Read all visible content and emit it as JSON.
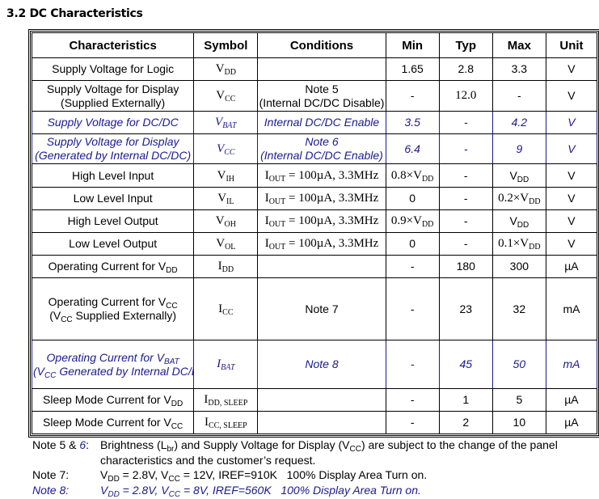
{
  "section_title": "3.2 DC Characteristics",
  "headers": [
    "Characteristics",
    "Symbol",
    "Conditions",
    "Min",
    "Typ",
    "Max",
    "Unit"
  ],
  "text_color_blue": "#1a1a90",
  "rows": [
    {
      "style": "normal",
      "cells": [
        [
          [
            "Supply Voltage for Logic"
          ]
        ],
        [
          [
            "V",
            {
              "sub": "DD"
            }
          ]
        ],
        [],
        [
          [
            "1.65"
          ]
        ],
        [
          [
            "2.8"
          ]
        ],
        [
          [
            "3.3"
          ]
        ],
        [
          [
            "V"
          ]
        ]
      ]
    },
    {
      "style": "normal",
      "cells": [
        [
          [
            "Supply Voltage for Display"
          ],
          [
            "(Supplied Externally)"
          ]
        ],
        [
          [
            "V",
            {
              "sub": "CC"
            }
          ]
        ],
        [
          [
            "Note 5"
          ],
          [
            "(Internal DC/DC Disable)"
          ]
        ],
        [
          [
            "-"
          ]
        ],
        [
          [
            "12.0"
          ]
        ],
        [
          [
            "-"
          ]
        ],
        [
          [
            "V"
          ]
        ]
      ]
    },
    {
      "style": "blue",
      "cells": [
        [
          [
            "Supply Voltage for DC/DC"
          ]
        ],
        [
          [
            "V",
            {
              "sub": "BAT"
            }
          ]
        ],
        [
          [
            "Internal DC/DC Enable"
          ]
        ],
        [
          [
            "3.5"
          ]
        ],
        [
          [
            "-"
          ]
        ],
        [
          [
            "4.2"
          ]
        ],
        [
          [
            "V"
          ]
        ]
      ]
    },
    {
      "style": "blue",
      "cells": [
        [
          [
            "Supply Voltage for Display"
          ],
          [
            "(Generated by Internal DC/DC)"
          ]
        ],
        [
          [
            "V",
            {
              "sub": "CC"
            }
          ]
        ],
        [
          [
            "Note 6"
          ],
          [
            "(Internal DC/DC Enable)"
          ]
        ],
        [
          [
            "6.4"
          ]
        ],
        [
          [
            "-"
          ]
        ],
        [
          [
            "9"
          ]
        ],
        [
          [
            "V"
          ]
        ]
      ]
    },
    {
      "style": "normal",
      "cells": [
        [
          [
            "High Level Input"
          ]
        ],
        [
          [
            "V",
            {
              "sub": "IH"
            }
          ]
        ],
        [
          [
            "I",
            {
              "sub": "OUT"
            },
            " = 100µA, 3.3MHz"
          ]
        ],
        [
          [
            "0.8×V",
            {
              "sub": "DD"
            }
          ]
        ],
        [
          [
            "-"
          ]
        ],
        [
          [
            "V",
            {
              "sub": "DD"
            }
          ]
        ],
        [
          [
            "V"
          ]
        ]
      ]
    },
    {
      "style": "normal",
      "cells": [
        [
          [
            "Low Level Input"
          ]
        ],
        [
          [
            "V",
            {
              "sub": "IL"
            }
          ]
        ],
        [
          [
            "I",
            {
              "sub": "OUT"
            },
            " = 100µA, 3.3MHz"
          ]
        ],
        [
          [
            "0"
          ]
        ],
        [
          [
            "-"
          ]
        ],
        [
          [
            "0.2×V",
            {
              "sub": "DD"
            }
          ]
        ],
        [
          [
            "V"
          ]
        ]
      ]
    },
    {
      "style": "normal",
      "cells": [
        [
          [
            "High Level Output"
          ]
        ],
        [
          [
            "V",
            {
              "sub": "OH"
            }
          ]
        ],
        [
          [
            "I",
            {
              "sub": "OUT"
            },
            " = 100µA, 3.3MHz"
          ]
        ],
        [
          [
            "0.9×V",
            {
              "sub": "DD"
            }
          ]
        ],
        [
          [
            "-"
          ]
        ],
        [
          [
            "V",
            {
              "sub": "DD"
            }
          ]
        ],
        [
          [
            "V"
          ]
        ]
      ]
    },
    {
      "style": "normal",
      "cells": [
        [
          [
            "Low Level Output"
          ]
        ],
        [
          [
            "V",
            {
              "sub": "OL"
            }
          ]
        ],
        [
          [
            "I",
            {
              "sub": "OUT"
            },
            " = 100µA, 3.3MHz"
          ]
        ],
        [
          [
            "0"
          ]
        ],
        [
          [
            "-"
          ]
        ],
        [
          [
            "0.1×V",
            {
              "sub": "DD"
            }
          ]
        ],
        [
          [
            "V"
          ]
        ]
      ]
    },
    {
      "style": "normal",
      "cells": [
        [
          [
            "Operating Current for V",
            {
              "sub": "DD"
            }
          ]
        ],
        [
          [
            "I",
            {
              "sub": "DD"
            }
          ]
        ],
        [],
        [
          [
            "-"
          ]
        ],
        [
          [
            "180"
          ]
        ],
        [
          [
            "300"
          ]
        ],
        [
          [
            "µA"
          ]
        ]
      ]
    },
    {
      "style": "normal",
      "cells": [
        [
          [
            "Operating Current for V",
            {
              "sub": "CC"
            }
          ],
          [
            "(V",
            {
              "sub": "CC"
            },
            " Supplied Externally)"
          ]
        ],
        [
          [
            "I",
            {
              "sub": "CC"
            }
          ]
        ],
        [
          [
            "Note 7"
          ]
        ],
        [
          [
            "-"
          ]
        ],
        [
          [
            "23"
          ]
        ],
        [
          [
            "32"
          ]
        ],
        [
          [
            "mA"
          ]
        ]
      ]
    },
    {
      "style": "blue",
      "cells": [
        [
          [
            "Operating Current for V",
            {
              "sub": "BAT"
            }
          ],
          [
            "(V",
            {
              "sub": "CC"
            },
            " Generated by Internal DC/DC)"
          ]
        ],
        [
          [
            "I",
            {
              "sub": "BAT"
            }
          ]
        ],
        [
          [
            "Note 8"
          ]
        ],
        [
          [
            "-"
          ]
        ],
        [
          [
            "45"
          ]
        ],
        [
          [
            "50"
          ]
        ],
        [
          [
            "mA"
          ]
        ]
      ]
    },
    {
      "style": "normal",
      "cells": [
        [
          [
            "Sleep Mode Current for V",
            {
              "sub": "DD"
            }
          ]
        ],
        [
          [
            "I",
            {
              "sub": "DD, SLEEP"
            }
          ]
        ],
        [],
        [
          [
            "-"
          ]
        ],
        [
          [
            "1"
          ]
        ],
        [
          [
            "5"
          ]
        ],
        [
          [
            "µA"
          ]
        ]
      ]
    },
    {
      "style": "normal",
      "cells": [
        [
          [
            "Sleep Mode Current for V",
            {
              "sub": "CC"
            }
          ]
        ],
        [
          [
            "I",
            {
              "sub": "CC, SLEEP"
            }
          ]
        ],
        [],
        [
          [
            "-"
          ]
        ],
        [
          [
            "2"
          ]
        ],
        [
          [
            "10"
          ]
        ],
        [
          [
            "µA"
          ]
        ]
      ]
    }
  ],
  "notes": [
    {
      "label": [
        "Note 5 & ",
        "6",
        ":"
      ],
      "lines": [
        [
          "Brightness (L",
          {
            "sub": "br"
          },
          ") and Supply Voltage for Display (V",
          {
            "sub": "CC"
          },
          ") are subject to the change of the panel"
        ],
        [
          "characteristics and the customer’s request."
        ]
      ],
      "style": "normal"
    },
    {
      "label": [
        "Note 7:"
      ],
      "lines": [
        [
          "V",
          {
            "sub": "DD"
          },
          " = 2.8V, V",
          {
            "sub": "CC"
          },
          " = 12V, IREF=910K   100% Display Area Turn on."
        ]
      ],
      "style": "normal"
    },
    {
      "label": [
        "Note 8:"
      ],
      "lines": [
        [
          "V",
          {
            "sub": "DD"
          },
          " = 2.8V, V",
          {
            "sub": "CC"
          },
          " = 8V, IREF=560K   100% Display Area Turn on."
        ]
      ],
      "style": "blue"
    }
  ]
}
